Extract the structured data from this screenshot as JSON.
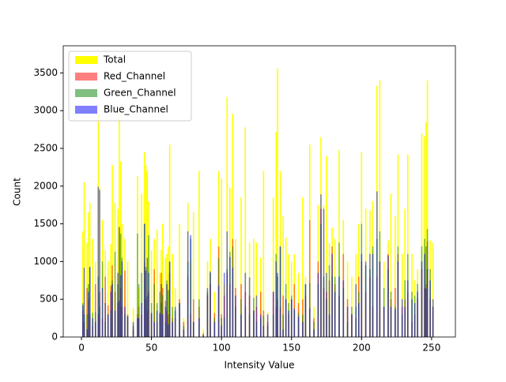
{
  "chart_data": {
    "type": "bar",
    "x_label": "Intensity Value",
    "y_label": "Count",
    "x": [
      1,
      2,
      4,
      5,
      6,
      8,
      10,
      12,
      13,
      15,
      17,
      19,
      21,
      22,
      24,
      26,
      27,
      28,
      29,
      31,
      33,
      37,
      40,
      41,
      43,
      45,
      46,
      47,
      48,
      50,
      52,
      54,
      56,
      57,
      58,
      60,
      61,
      62,
      63,
      65,
      67,
      70,
      73,
      76,
      78,
      80,
      84,
      87,
      90,
      92,
      95,
      98,
      100,
      102,
      104,
      106,
      108,
      110,
      114,
      117,
      120,
      123,
      125,
      128,
      130,
      133,
      137,
      139,
      140,
      142,
      144,
      146,
      148,
      150,
      152,
      155,
      158,
      160,
      163,
      166,
      169,
      171,
      173,
      175,
      177,
      179,
      181,
      184,
      187,
      190,
      193,
      196,
      198,
      200,
      203,
      206,
      208,
      211,
      213,
      216,
      219,
      221,
      224,
      226,
      229,
      231,
      233,
      236,
      238,
      240,
      243,
      245,
      246,
      247,
      249,
      251
    ],
    "series": [
      {
        "name": "Total",
        "color": "#ffff00",
        "opacity": 1,
        "values": [
          1400,
          2050,
          1250,
          1650,
          1780,
          1300,
          1000,
          2950,
          1980,
          1550,
          1150,
          1000,
          1230,
          2280,
          1780,
          1700,
          2950,
          2330,
          1500,
          1300,
          1000,
          380,
          2130,
          650,
          1900,
          2450,
          2270,
          2200,
          1800,
          1150,
          1300,
          1420,
          850,
          1150,
          1500,
          1050,
          1100,
          1200,
          2550,
          1100,
          650,
          1500,
          250,
          1780,
          1000,
          1650,
          2200,
          100,
          1000,
          1300,
          600,
          2200,
          2100,
          700,
          3180,
          1980,
          2960,
          1300,
          1850,
          2780,
          1250,
          1300,
          1250,
          1050,
          2200,
          330,
          1850,
          2720,
          3560,
          2200,
          1600,
          1320,
          1100,
          1000,
          1100,
          850,
          1850,
          800,
          2550,
          400,
          1750,
          2650,
          1750,
          2400,
          1250,
          1450,
          1300,
          2480,
          1550,
          1000,
          800,
          1100,
          1500,
          2450,
          1700,
          1680,
          1800,
          3330,
          3400,
          1000,
          1280,
          1900,
          1600,
          2420,
          1100,
          1700,
          2420,
          1100,
          750,
          900,
          2700,
          2660,
          2850,
          3400,
          1280,
          1250
        ]
      },
      {
        "name": "Red_Channel",
        "color": "#ff0000",
        "opacity": 0.5,
        "values": [
          350,
          200,
          650,
          500,
          300,
          150,
          700,
          300,
          600,
          250,
          800,
          420,
          680,
          950,
          600,
          450,
          1450,
          650,
          400,
          880,
          300,
          100,
          300,
          400,
          300,
          1000,
          500,
          350,
          600,
          300,
          900,
          200,
          300,
          850,
          650,
          480,
          350,
          300,
          850,
          250,
          250,
          500,
          200,
          800,
          300,
          500,
          400,
          50,
          550,
          700,
          320,
          1200,
          300,
          550,
          850,
          700,
          1300,
          650,
          700,
          600,
          550,
          350,
          400,
          600,
          350,
          200,
          600,
          400,
          500,
          400,
          550,
          500,
          300,
          500,
          700,
          450,
          500,
          550,
          1550,
          250,
          1000,
          1700,
          650,
          600,
          750,
          1200,
          700,
          550,
          1100,
          500,
          300,
          250,
          800,
          1000,
          600,
          800,
          400,
          800,
          1000,
          400,
          1100,
          500,
          650,
          1100,
          400,
          500,
          600,
          200,
          300,
          500,
          900,
          650,
          700,
          1270,
          500,
          400
        ]
      },
      {
        "name": "Green_Channel",
        "color": "#008000",
        "opacity": 0.5,
        "values": [
          450,
          300,
          300,
          700,
          920,
          320,
          330,
          800,
          400,
          1000,
          200,
          300,
          350,
          750,
          1130,
          700,
          1460,
          1370,
          1050,
          300,
          280,
          150,
          1370,
          700,
          850,
          1500,
          930,
          550,
          1350,
          450,
          700,
          450,
          600,
          450,
          560,
          200,
          750,
          620,
          1000,
          400,
          350,
          450,
          150,
          1000,
          1300,
          200,
          500,
          30,
          600,
          850,
          250,
          1050,
          250,
          260,
          900,
          1130,
          1200,
          400,
          500,
          400,
          300,
          520,
          200,
          250,
          280,
          150,
          300,
          1100,
          800,
          1200,
          300,
          700,
          450,
          550,
          350,
          320,
          300,
          700,
          720,
          200,
          700,
          1500,
          800,
          500,
          950,
          800,
          800,
          1250,
          650,
          200,
          400,
          400,
          600,
          1500,
          950,
          900,
          1200,
          1300,
          1400,
          650,
          900,
          600,
          400,
          1200,
          300,
          750,
          1100,
          600,
          550,
          700,
          1200,
          1300,
          1200,
          1430,
          900,
          400
        ]
      },
      {
        "name": "Blue_Channel",
        "color": "#0000ff",
        "opacity": 0.5,
        "values": [
          420,
          920,
          100,
          600,
          930,
          250,
          200,
          1990,
          1950,
          650,
          450,
          300,
          600,
          700,
          350,
          850,
          480,
          820,
          1000,
          400,
          270,
          200,
          250,
          250,
          450,
          1500,
          880,
          1050,
          850,
          320,
          200,
          350,
          320,
          700,
          300,
          400,
          700,
          170,
          1000,
          200,
          400,
          450,
          100,
          1400,
          1350,
          200,
          250,
          20,
          650,
          870,
          200,
          680,
          150,
          850,
          1400,
          1060,
          920,
          550,
          300,
          850,
          790,
          350,
          550,
          300,
          150,
          300,
          600,
          1000,
          850,
          1200,
          100,
          500,
          350,
          500,
          380,
          270,
          200,
          700,
          380,
          100,
          850,
          1890,
          1700,
          850,
          300,
          1100,
          600,
          800,
          750,
          400,
          300,
          700,
          450,
          1100,
          1000,
          1100,
          1100,
          1930,
          1000,
          400,
          1080,
          400,
          370,
          1000,
          500,
          400,
          750,
          500,
          450,
          600,
          1000,
          1100,
          640,
          900,
          750,
          500
        ]
      }
    ],
    "xlim": [
      -13,
      267
    ],
    "ylim": [
      0,
      3860
    ],
    "xticks": [
      0,
      50,
      100,
      150,
      200,
      250
    ],
    "yticks": [
      0,
      500,
      1000,
      1500,
      2000,
      2500,
      3000,
      3500
    ],
    "legend": "upper left"
  }
}
